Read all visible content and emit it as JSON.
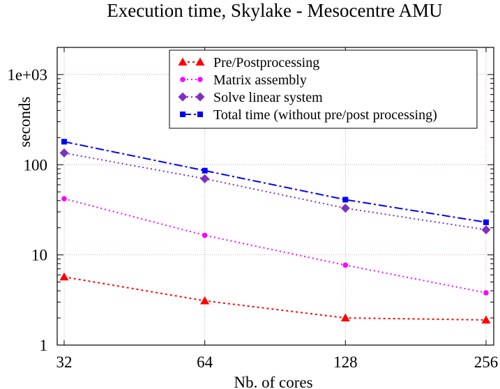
{
  "chart_data": {
    "type": "line",
    "title": "Execution time, Skylake - Mesocentre AMU",
    "xlabel": "Nb. of cores",
    "ylabel": "seconds",
    "x_scale": "log2",
    "y_scale": "log10",
    "xlim": [
      32,
      256
    ],
    "ylim": [
      1,
      2000
    ],
    "x": [
      32,
      64,
      128,
      256
    ],
    "x_tick_labels": [
      "32",
      "64",
      "128",
      "256"
    ],
    "y_tick_values": [
      1,
      10,
      100,
      1000
    ],
    "y_tick_labels": [
      "1",
      "10",
      "100",
      "1e+03"
    ],
    "grid": true,
    "legend_position": "top-right",
    "series": [
      {
        "name": "Pre/Postprocessing",
        "values": [
          5.7,
          3.1,
          2.0,
          1.9
        ],
        "color": "#ff0000",
        "marker": "triangle",
        "dash": "3,4"
      },
      {
        "name": "Matrix assembly",
        "values": [
          42,
          16.5,
          7.7,
          3.8
        ],
        "color": "#ff00ff",
        "marker": "circle",
        "dash": "2,4"
      },
      {
        "name": "Solve linear system",
        "values": [
          135,
          70,
          33,
          19
        ],
        "color": "#7f2fbf",
        "marker": "diamond",
        "dash": "2,4"
      },
      {
        "name": "Total time (without pre/post processing)",
        "values": [
          180,
          86,
          41,
          23
        ],
        "color": "#0000ff",
        "marker": "square",
        "dash": "12,4,3,4"
      }
    ]
  }
}
